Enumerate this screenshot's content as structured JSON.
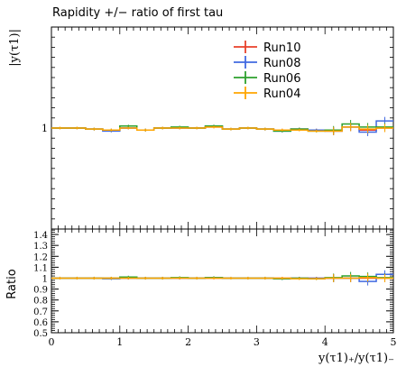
{
  "chart_data": [
    {
      "type": "line",
      "panel": "main",
      "title": "Rapidity +/− ratio of first tau",
      "ylabel": "|y(τ1)|",
      "ylim": [
        0.5,
        1.5
      ],
      "y_ticks": [
        {
          "value": 1,
          "label": "1"
        }
      ],
      "xlim": [
        0,
        5
      ],
      "legend_position": "top-right",
      "x_edges": [
        0,
        0.25,
        0.5,
        0.75,
        1.0,
        1.25,
        1.5,
        1.75,
        2.0,
        2.25,
        2.5,
        2.75,
        3.0,
        3.25,
        3.5,
        3.75,
        4.0,
        4.25,
        4.5,
        4.75,
        5.0
      ],
      "series": [
        {
          "name": "Run10",
          "color": "#e8402a",
          "values": [
            1.0,
            1.0,
            0.995,
            0.99,
            1.0,
            0.99,
            1.0,
            1.0,
            1.0,
            1.005,
            0.995,
            1.0,
            0.995,
            0.99,
            0.995,
            0.99,
            0.985,
            1.005,
            0.99,
            1.0
          ]
        },
        {
          "name": "Run08",
          "color": "#4169e1",
          "values": [
            1.0,
            1.0,
            0.995,
            0.985,
            1.0,
            0.99,
            1.0,
            1.0,
            1.0,
            1.01,
            0.995,
            1.0,
            0.995,
            0.985,
            0.995,
            0.99,
            0.985,
            1.005,
            0.98,
            1.035
          ]
        },
        {
          "name": "Run06",
          "color": "#2ca02c",
          "values": [
            1.0,
            1.0,
            0.995,
            0.99,
            1.01,
            0.99,
            1.0,
            1.005,
            1.0,
            1.01,
            0.995,
            1.0,
            0.995,
            0.985,
            0.995,
            0.985,
            0.99,
            1.02,
            1.005,
            1.005
          ]
        },
        {
          "name": "Run04",
          "color": "#ffa500",
          "values": [
            1.0,
            1.0,
            0.995,
            0.99,
            1.0,
            0.99,
            1.0,
            1.0,
            1.0,
            1.005,
            0.995,
            1.0,
            0.995,
            0.99,
            0.99,
            0.985,
            0.985,
            1.005,
            0.995,
            1.0
          ]
        }
      ]
    },
    {
      "type": "line",
      "panel": "ratio",
      "xlabel": "y(τ1)₊/y(τ1)₋",
      "ylabel": "Ratio",
      "ylim": [
        0.5,
        1.45
      ],
      "y_ticks": [
        {
          "value": 0.5,
          "label": "0.5"
        },
        {
          "value": 0.6,
          "label": "0.6"
        },
        {
          "value": 0.7,
          "label": "0.7"
        },
        {
          "value": 0.8,
          "label": "0.8"
        },
        {
          "value": 0.9,
          "label": "0.9"
        },
        {
          "value": 1.0,
          "label": "1"
        },
        {
          "value": 1.1,
          "label": "1.1"
        },
        {
          "value": 1.2,
          "label": "1.2"
        },
        {
          "value": 1.3,
          "label": "1.3"
        },
        {
          "value": 1.4,
          "label": "1.4"
        }
      ],
      "xlim": [
        0,
        5
      ],
      "x_ticks": [
        {
          "value": 0,
          "label": "0"
        },
        {
          "value": 1,
          "label": "1"
        },
        {
          "value": 2,
          "label": "2"
        },
        {
          "value": 3,
          "label": "3"
        },
        {
          "value": 4,
          "label": "4"
        },
        {
          "value": 5,
          "label": "5"
        }
      ],
      "x_edges": [
        0,
        0.25,
        0.5,
        0.75,
        1.0,
        1.25,
        1.5,
        1.75,
        2.0,
        2.25,
        2.5,
        2.75,
        3.0,
        3.25,
        3.5,
        3.75,
        4.0,
        4.25,
        4.5,
        4.75,
        5.0
      ],
      "series": [
        {
          "name": "Run10",
          "color": "#e8402a",
          "values": [
            1.0,
            1.0,
            1.0,
            1.0,
            1.0,
            1.0,
            1.0,
            1.0,
            1.0,
            1.0,
            1.0,
            1.0,
            1.0,
            1.0,
            1.0,
            1.0,
            1.0,
            1.0,
            1.0,
            1.0
          ]
        },
        {
          "name": "Run08",
          "color": "#4169e1",
          "values": [
            1.0,
            1.0,
            1.0,
            0.995,
            1.0,
            1.0,
            1.0,
            1.0,
            1.0,
            1.005,
            1.0,
            1.0,
            1.0,
            0.995,
            1.0,
            1.0,
            1.0,
            1.0,
            0.97,
            1.035
          ]
        },
        {
          "name": "Run06",
          "color": "#2ca02c",
          "values": [
            1.0,
            1.0,
            1.0,
            1.0,
            1.01,
            1.0,
            1.0,
            1.005,
            1.0,
            1.005,
            1.0,
            1.0,
            1.0,
            0.995,
            1.0,
            0.995,
            1.005,
            1.02,
            1.015,
            1.005
          ]
        },
        {
          "name": "Run04",
          "color": "#ffa500",
          "values": [
            1.0,
            1.0,
            1.0,
            1.0,
            1.0,
            1.0,
            1.0,
            1.0,
            1.0,
            1.0,
            1.0,
            1.0,
            1.0,
            1.0,
            0.995,
            0.995,
            1.0,
            1.0,
            1.005,
            1.0
          ]
        }
      ]
    }
  ],
  "legend": {
    "items": [
      {
        "label": "Run10",
        "color": "#e8402a"
      },
      {
        "label": "Run08",
        "color": "#4169e1"
      },
      {
        "label": "Run06",
        "color": "#2ca02c"
      },
      {
        "label": "Run04",
        "color": "#ffa500"
      }
    ]
  }
}
